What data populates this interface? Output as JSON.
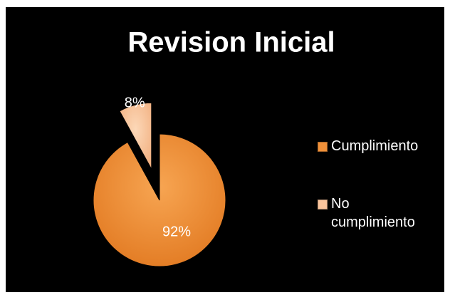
{
  "chart_data": {
    "type": "pie",
    "title": "Revision Inicial",
    "categories": [
      "Cumplimiento",
      "No cumplimiento"
    ],
    "values": [
      92,
      8
    ],
    "value_labels": [
      "92%",
      "8%"
    ],
    "colors": [
      "#f0913a",
      "#f9c49c"
    ],
    "legend": "right"
  }
}
